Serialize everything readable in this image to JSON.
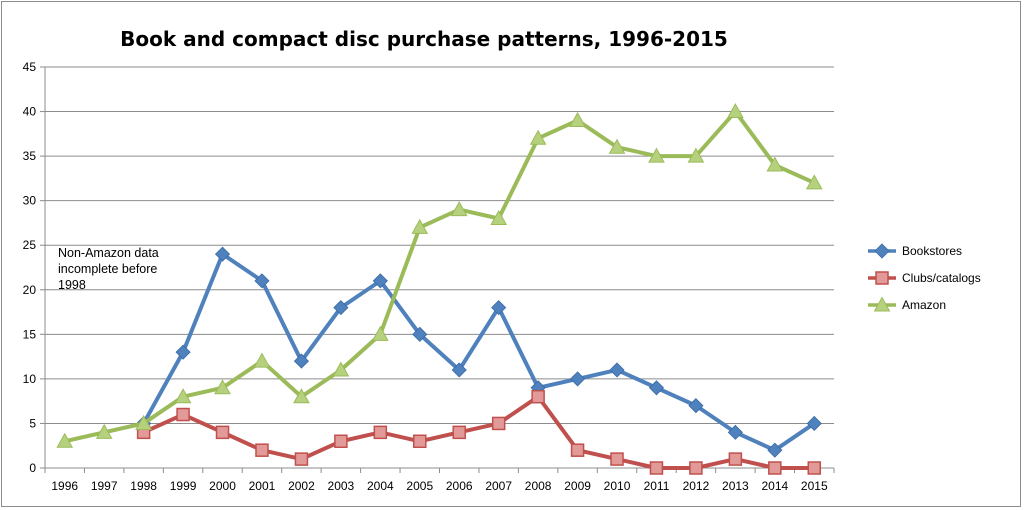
{
  "chart_data": {
    "type": "line",
    "title": "Book and compact disc purchase patterns, 1996-2015",
    "xlabel": "",
    "ylabel": "",
    "ylim": [
      0,
      45
    ],
    "yticks": [
      "0",
      "5",
      "10",
      "15",
      "20",
      "25",
      "30",
      "35",
      "40",
      "45"
    ],
    "grid": true,
    "legend_position": "right",
    "categories": [
      "1996",
      "1997",
      "1998",
      "1999",
      "2000",
      "2001",
      "2002",
      "2003",
      "2004",
      "2005",
      "2006",
      "2007",
      "2008",
      "2009",
      "2010",
      "2011",
      "2012",
      "2013",
      "2014",
      "2015"
    ],
    "series": [
      {
        "name": "Bookstores",
        "color": "#4f81bd",
        "marker": "diamond",
        "values": [
          null,
          null,
          5,
          13,
          24,
          21,
          12,
          18,
          21,
          15,
          11,
          18,
          9,
          10,
          11,
          9,
          7,
          4,
          2,
          5
        ]
      },
      {
        "name": "Clubs/catalogs",
        "color": "#c0504d",
        "marker": "square",
        "values": [
          null,
          null,
          4,
          6,
          4,
          2,
          1,
          3,
          4,
          3,
          4,
          5,
          8,
          2,
          1,
          0,
          0,
          1,
          0,
          0
        ]
      },
      {
        "name": "Amazon",
        "color": "#9bbb59",
        "marker": "triangle",
        "values": [
          3,
          4,
          5,
          8,
          9,
          12,
          8,
          11,
          15,
          27,
          29,
          28,
          37,
          39,
          36,
          35,
          35,
          40,
          34,
          32
        ]
      }
    ],
    "annotations": [
      {
        "lines": [
          "Non-Amazon data",
          "incomplete before",
          "1998"
        ]
      }
    ]
  }
}
